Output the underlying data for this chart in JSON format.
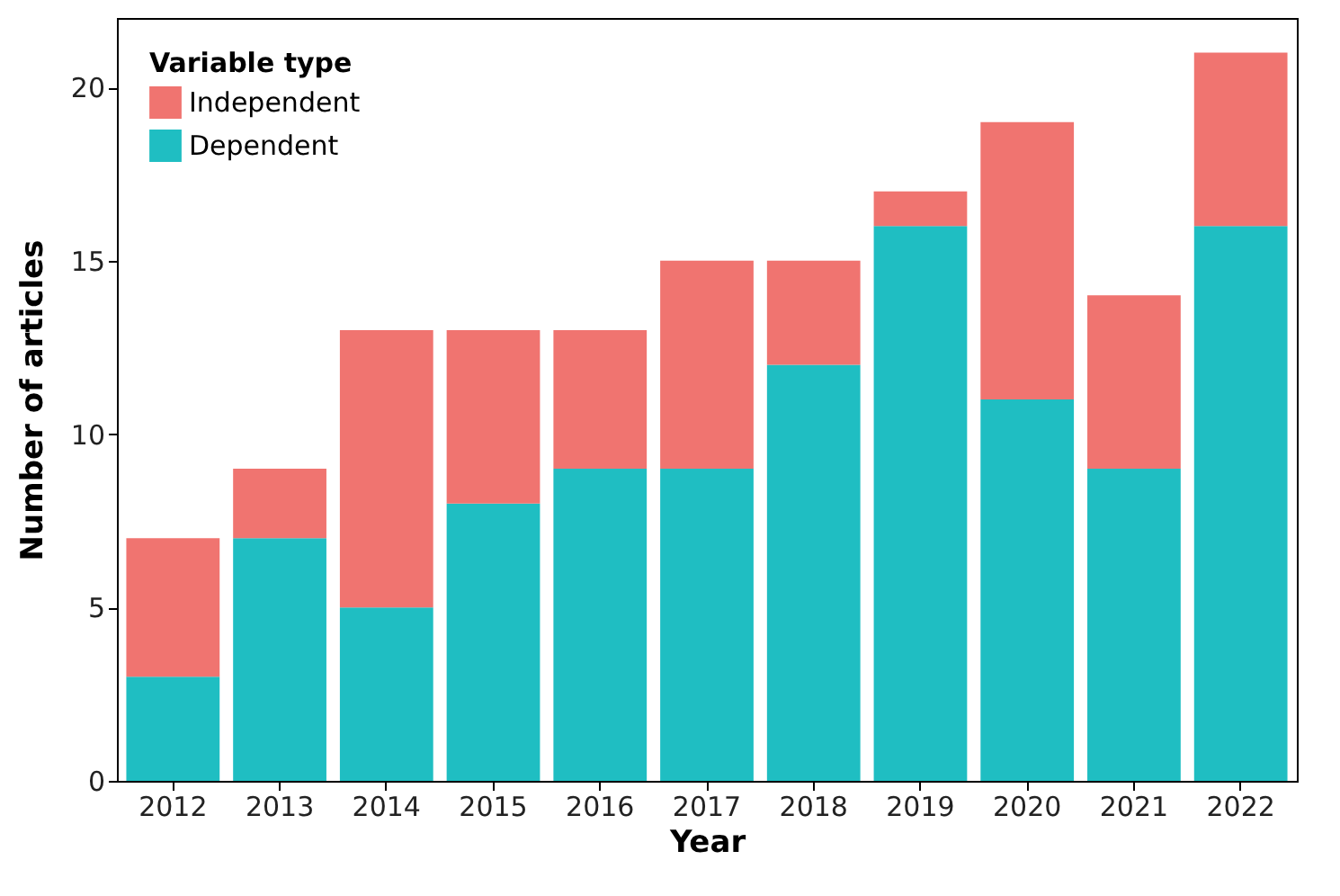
{
  "chart_data": {
    "type": "bar",
    "stacked": true,
    "xlabel": "Year",
    "ylabel": "Number of articles",
    "legend_title": "Variable type",
    "legend": "top left",
    "grid": false,
    "categories": [
      "2012",
      "2013",
      "2014",
      "2015",
      "2016",
      "2017",
      "2018",
      "2019",
      "2020",
      "2021",
      "2022"
    ],
    "series": [
      {
        "name": "Dependent",
        "color": "#1fbec2",
        "values": [
          3,
          7,
          5,
          8,
          9,
          9,
          12,
          16,
          11,
          9,
          16
        ]
      },
      {
        "name": "Independent",
        "color": "#f07470",
        "values": [
          4,
          2,
          8,
          5,
          4,
          6,
          3,
          1,
          8,
          5,
          5
        ]
      }
    ],
    "ylim": [
      0,
      22
    ],
    "yticks": [
      0,
      5,
      10,
      15,
      20
    ]
  }
}
